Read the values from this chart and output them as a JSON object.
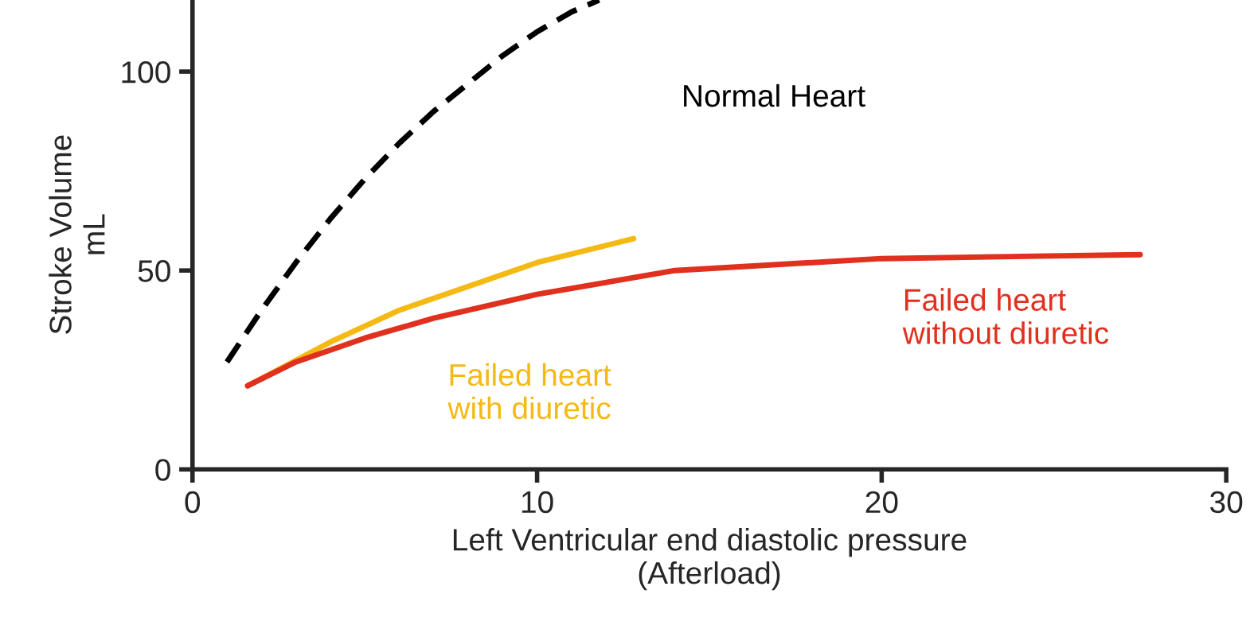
{
  "chart_data": {
    "type": "line",
    "xlabel": "Left Ventricular end diastolic pressure\n(Afterload)",
    "ylabel": "Stroke Volume\nmL",
    "xlim": [
      0,
      30
    ],
    "xticks": [
      0,
      10,
      20,
      30
    ],
    "ylim": [
      0,
      118
    ],
    "yticks": [
      0,
      50,
      100
    ],
    "grid": false,
    "legend": false,
    "marker": "none",
    "series": [
      {
        "name": "Normal Heart",
        "color": "#000000",
        "line_style": "dashed",
        "x": [
          1,
          2,
          3,
          4,
          5,
          6,
          7,
          8,
          9,
          10,
          11,
          11.8
        ],
        "values": [
          27,
          40,
          52,
          63,
          73,
          82,
          90,
          97,
          104,
          110,
          115,
          118
        ]
      },
      {
        "name": "Failed heart\nwith diuretic",
        "color": "#f5b914",
        "line_style": "solid",
        "x": [
          1.6,
          4,
          6,
          8,
          10,
          12.8
        ],
        "values": [
          21,
          32,
          40,
          46,
          52,
          58
        ]
      },
      {
        "name": "Failed heart\nwithout diuretic",
        "color": "#e0301e",
        "line_style": "solid",
        "x": [
          1.6,
          3,
          5,
          7,
          10,
          14,
          20,
          27.5
        ],
        "values": [
          21,
          27,
          33,
          38,
          44,
          50,
          53,
          54
        ]
      }
    ]
  }
}
